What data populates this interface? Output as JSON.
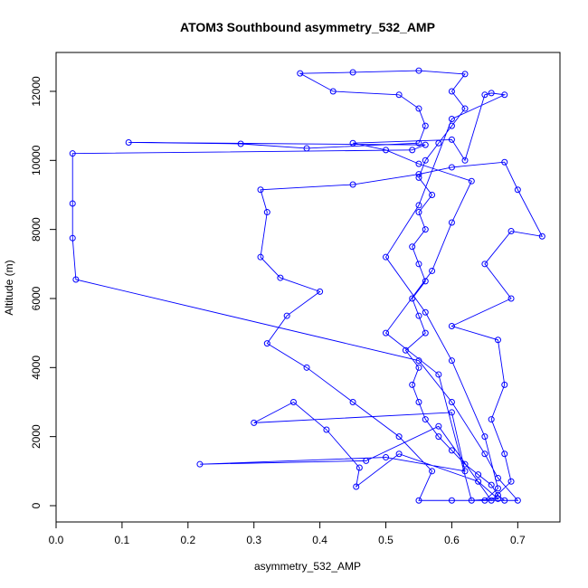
{
  "chart_data": {
    "type": "line",
    "title": "ATOM3 Southbound asymmetry_532_AMP",
    "x_label": "asymmetry_532_AMP",
    "y_label": "Altitude (m)",
    "color": "#0000ff",
    "markers": true,
    "x": [
      0.68,
      0.67,
      0.66,
      0.64,
      0.62,
      0.6,
      0.58,
      0.56,
      0.55,
      0.54,
      0.55,
      0.53,
      0.56,
      0.55,
      0.54,
      0.56,
      0.55,
      0.54,
      0.56,
      0.55,
      0.57,
      0.55,
      0.56,
      0.58,
      0.6,
      0.62,
      0.6,
      0.62,
      0.55,
      0.45,
      0.37,
      0.42,
      0.52,
      0.55,
      0.56,
      0.55,
      0.38,
      0.28,
      0.11,
      0.56,
      0.54,
      0.025,
      0.025,
      0.025,
      0.03,
      0.55,
      0.6,
      0.65,
      0.67,
      0.7,
      0.6,
      0.55,
      0.57,
      0.52,
      0.45,
      0.38,
      0.32,
      0.35,
      0.4,
      0.34,
      0.31,
      0.32,
      0.31,
      0.45,
      0.55,
      0.6,
      0.68,
      0.7,
      0.737,
      0.69,
      0.65,
      0.69,
      0.6,
      0.67,
      0.68,
      0.66,
      0.68,
      0.69,
      0.66,
      0.58,
      0.47,
      0.218,
      0.5,
      0.62,
      0.6,
      0.3,
      0.36,
      0.41,
      0.46,
      0.455,
      0.52,
      0.64,
      0.67,
      0.63,
      0.58,
      0.5,
      0.57,
      0.6,
      0.63,
      0.55,
      0.5,
      0.45,
      0.6,
      0.62,
      0.65,
      0.66,
      0.68,
      0.6,
      0.55,
      0.5,
      0.56,
      0.6,
      0.65,
      0.67,
      0.65
    ],
    "values": [
      150,
      300,
      600,
      900,
      1200,
      1600,
      2000,
      2500,
      3000,
      3500,
      4000,
      4500,
      5000,
      5500,
      6000,
      6500,
      7000,
      7500,
      8000,
      8500,
      9000,
      9500,
      10000,
      10500,
      11000,
      11500,
      12000,
      12500,
      12600,
      12550,
      12520,
      12000,
      11900,
      11500,
      11000,
      10500,
      10350,
      10480,
      10520,
      10450,
      10300,
      10200,
      8750,
      7750,
      6550,
      4200,
      3000,
      1500,
      800,
      150,
      150,
      150,
      1000,
      2000,
      3000,
      4000,
      4700,
      5500,
      6200,
      6600,
      7200,
      8500,
      9150,
      9300,
      9600,
      9800,
      9950,
      9150,
      7800,
      7950,
      7000,
      6000,
      5200,
      4800,
      3500,
      2500,
      1500,
      700,
      150,
      2300,
      1300,
      1200,
      1400,
      1000,
      2700,
      2400,
      3000,
      2200,
      1100,
      550,
      1500,
      700,
      200,
      150,
      3800,
      5000,
      6800,
      8200,
      9400,
      9900,
      10300,
      10500,
      10600,
      10000,
      11900,
      11950,
      11900,
      11200,
      8700,
      7200,
      5600,
      4200,
      2000,
      500,
      150
    ],
    "xlim": [
      0,
      0.764
    ],
    "ylim": [
      -472,
      13126
    ],
    "xticks": [
      {
        "value": 0,
        "label": "0.0"
      },
      0.1,
      0.2,
      0.3,
      0.4,
      0.5,
      0.6,
      0.7
    ],
    "yticks": [
      0,
      2000,
      4000,
      6000,
      8000,
      10000,
      12000
    ]
  }
}
